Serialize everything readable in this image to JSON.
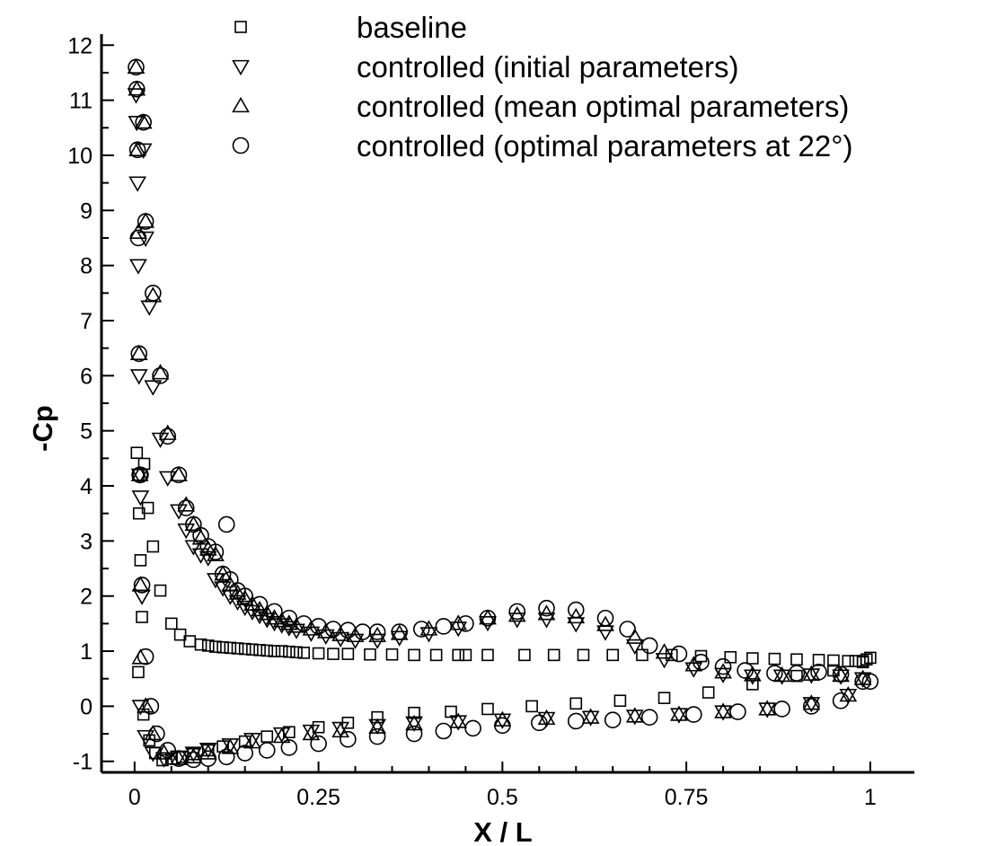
{
  "chart_data": {
    "type": "scatter",
    "title": "",
    "xlabel": "X / L",
    "ylabel": "-Cp",
    "xlim": [
      -0.045,
      1.06
    ],
    "ylim": [
      -1.2,
      12.2
    ],
    "x_ticks": [
      0,
      0.25,
      0.5,
      0.75,
      1
    ],
    "x_tick_labels": [
      "0",
      "0.25",
      "0.5",
      "0.75",
      "1"
    ],
    "y_ticks": [
      -1,
      0,
      1,
      2,
      3,
      4,
      5,
      6,
      7,
      8,
      9,
      10,
      11,
      12
    ],
    "y_tick_labels": [
      "-1",
      "0",
      "1",
      "2",
      "3",
      "4",
      "5",
      "6",
      "7",
      "8",
      "9",
      "10",
      "11",
      "12"
    ],
    "grid": false,
    "legend_position": "top-right",
    "colors": {
      "marker": "#000000",
      "axis": "#000000",
      "background": "#ffffff"
    },
    "series": [
      {
        "name": "baseline",
        "marker": "square",
        "x": [
          0.003,
          0.005,
          0.006,
          0.008,
          0.01,
          0.013,
          0.018,
          0.025,
          0.035,
          0.05,
          0.062,
          0.075,
          0.09,
          0.1,
          0.11,
          0.12,
          0.13,
          0.14,
          0.15,
          0.16,
          0.17,
          0.18,
          0.19,
          0.2,
          0.21,
          0.22,
          0.23,
          0.25,
          0.27,
          0.29,
          0.32,
          0.35,
          0.38,
          0.41,
          0.44,
          0.45,
          0.48,
          0.53,
          0.57,
          0.61,
          0.65,
          0.69,
          0.73,
          0.77,
          0.81,
          0.84,
          0.87,
          0.9,
          0.93,
          0.95,
          0.97,
          0.98,
          0.99,
          0.995,
          1.0,
          0.005,
          0.012,
          0.02,
          0.028,
          0.038,
          0.05,
          0.065,
          0.08,
          0.1,
          0.12,
          0.15,
          0.18,
          0.21,
          0.25,
          0.29,
          0.33,
          0.38,
          0.43,
          0.48,
          0.54,
          0.6,
          0.66,
          0.72,
          0.78,
          0.84,
          0.9,
          0.95,
          0.99
        ],
        "y": [
          4.6,
          4.2,
          3.5,
          2.65,
          1.62,
          4.4,
          3.6,
          2.9,
          2.1,
          1.5,
          1.3,
          1.18,
          1.12,
          1.1,
          1.08,
          1.07,
          1.06,
          1.05,
          1.04,
          1.03,
          1.02,
          1.01,
          1.0,
          1.0,
          0.99,
          0.98,
          0.97,
          0.96,
          0.95,
          0.95,
          0.94,
          0.94,
          0.93,
          0.93,
          0.93,
          0.93,
          0.93,
          0.93,
          0.93,
          0.93,
          0.93,
          0.93,
          0.93,
          0.91,
          0.89,
          0.87,
          0.86,
          0.85,
          0.84,
          0.83,
          0.82,
          0.82,
          0.82,
          0.85,
          0.88,
          0.62,
          -0.15,
          -0.62,
          -0.85,
          -0.98,
          -0.95,
          -0.92,
          -0.87,
          -0.8,
          -0.73,
          -0.64,
          -0.55,
          -0.47,
          -0.38,
          -0.3,
          -0.2,
          -0.12,
          -0.1,
          -0.05,
          0.0,
          0.05,
          0.1,
          0.15,
          0.25,
          0.4,
          0.55,
          0.65,
          0.8
        ]
      },
      {
        "name": "controlled (initial parameters)",
        "marker": "triangle-down",
        "x": [
          0.002,
          0.003,
          0.004,
          0.005,
          0.006,
          0.007,
          0.008,
          0.01,
          0.012,
          0.015,
          0.02,
          0.025,
          0.035,
          0.045,
          0.06,
          0.07,
          0.08,
          0.09,
          0.1,
          0.11,
          0.12,
          0.13,
          0.14,
          0.15,
          0.16,
          0.17,
          0.18,
          0.19,
          0.2,
          0.21,
          0.22,
          0.24,
          0.26,
          0.28,
          0.3,
          0.33,
          0.36,
          0.4,
          0.44,
          0.48,
          0.52,
          0.56,
          0.6,
          0.64,
          0.68,
          0.72,
          0.76,
          0.8,
          0.84,
          0.88,
          0.92,
          0.96,
          0.99,
          0.008,
          0.015,
          0.025,
          0.04,
          0.06,
          0.08,
          0.1,
          0.13,
          0.16,
          0.2,
          0.24,
          0.28,
          0.33,
          0.38,
          0.44,
          0.5,
          0.56,
          0.62,
          0.68,
          0.74,
          0.8,
          0.86,
          0.92,
          0.97
        ],
        "y": [
          11.1,
          10.6,
          9.5,
          8.0,
          6.0,
          4.2,
          3.8,
          2.0,
          10.1,
          8.5,
          7.25,
          5.8,
          4.85,
          4.15,
          3.55,
          3.2,
          2.9,
          2.75,
          2.7,
          2.3,
          2.15,
          2.0,
          1.9,
          1.8,
          1.72,
          1.65,
          1.58,
          1.52,
          1.48,
          1.43,
          1.38,
          1.33,
          1.28,
          1.23,
          1.2,
          1.2,
          1.25,
          1.32,
          1.42,
          1.52,
          1.58,
          1.58,
          1.5,
          1.35,
          1.1,
          0.85,
          0.68,
          0.58,
          0.55,
          0.55,
          0.57,
          0.55,
          0.5,
          0.0,
          -0.55,
          -0.85,
          -0.95,
          -0.92,
          -0.85,
          -0.78,
          -0.7,
          -0.6,
          -0.5,
          -0.45,
          -0.4,
          -0.35,
          -0.3,
          -0.28,
          -0.25,
          -0.22,
          -0.2,
          -0.18,
          -0.15,
          -0.1,
          -0.05,
          0.05,
          0.2
        ]
      },
      {
        "name": "controlled (mean optimal parameters)",
        "marker": "triangle-up",
        "x": [
          0.002,
          0.003,
          0.004,
          0.005,
          0.006,
          0.007,
          0.008,
          0.012,
          0.015,
          0.025,
          0.035,
          0.045,
          0.06,
          0.07,
          0.08,
          0.09,
          0.1,
          0.11,
          0.12,
          0.13,
          0.14,
          0.15,
          0.16,
          0.17,
          0.18,
          0.19,
          0.2,
          0.21,
          0.22,
          0.24,
          0.26,
          0.28,
          0.3,
          0.33,
          0.36,
          0.4,
          0.44,
          0.48,
          0.52,
          0.56,
          0.6,
          0.64,
          0.68,
          0.72,
          0.76,
          0.8,
          0.84,
          0.88,
          0.92,
          0.96,
          0.99,
          0.008,
          0.015,
          0.025,
          0.04,
          0.06,
          0.08,
          0.1,
          0.13,
          0.16,
          0.2,
          0.24,
          0.28,
          0.33,
          0.38,
          0.44,
          0.5,
          0.56,
          0.62,
          0.68,
          0.74,
          0.8,
          0.86,
          0.92,
          0.97
        ],
        "y": [
          11.6,
          11.2,
          10.1,
          8.6,
          6.4,
          4.2,
          2.2,
          10.6,
          8.8,
          7.45,
          6.05,
          4.95,
          4.2,
          3.65,
          3.3,
          3.05,
          2.85,
          2.75,
          2.4,
          2.2,
          2.05,
          1.95,
          1.85,
          1.75,
          1.68,
          1.6,
          1.55,
          1.5,
          1.45,
          1.4,
          1.35,
          1.3,
          1.28,
          1.28,
          1.32,
          1.4,
          1.5,
          1.6,
          1.65,
          1.68,
          1.62,
          1.48,
          1.25,
          0.98,
          0.75,
          0.62,
          0.57,
          0.56,
          0.58,
          0.56,
          0.5,
          0.88,
          0.0,
          -0.5,
          -0.85,
          -0.95,
          -0.92,
          -0.85,
          -0.75,
          -0.65,
          -0.55,
          -0.5,
          -0.45,
          -0.38,
          -0.32,
          -0.28,
          -0.25,
          -0.22,
          -0.2,
          -0.18,
          -0.15,
          -0.1,
          -0.05,
          0.05,
          0.2
        ]
      },
      {
        "name": "controlled (optimal parameters at 22°)",
        "marker": "circle",
        "x": [
          0.002,
          0.003,
          0.004,
          0.005,
          0.006,
          0.007,
          0.008,
          0.01,
          0.012,
          0.015,
          0.025,
          0.035,
          0.045,
          0.06,
          0.07,
          0.08,
          0.09,
          0.1,
          0.11,
          0.12,
          0.125,
          0.13,
          0.14,
          0.15,
          0.17,
          0.19,
          0.21,
          0.23,
          0.25,
          0.27,
          0.29,
          0.31,
          0.33,
          0.36,
          0.39,
          0.42,
          0.45,
          0.48,
          0.52,
          0.56,
          0.6,
          0.64,
          0.67,
          0.7,
          0.74,
          0.77,
          0.8,
          0.83,
          0.87,
          0.9,
          0.93,
          0.96,
          0.99,
          0.015,
          0.022,
          0.03,
          0.045,
          0.06,
          0.08,
          0.1,
          0.125,
          0.15,
          0.18,
          0.21,
          0.25,
          0.29,
          0.33,
          0.38,
          0.42,
          0.46,
          0.5,
          0.55,
          0.6,
          0.65,
          0.7,
          0.76,
          0.82,
          0.88,
          0.92,
          0.96,
          1.0
        ],
        "y": [
          11.6,
          11.2,
          10.1,
          8.5,
          6.4,
          4.2,
          4.2,
          2.2,
          10.6,
          8.8,
          7.5,
          6.0,
          4.9,
          4.2,
          3.6,
          3.3,
          3.1,
          2.9,
          2.8,
          2.4,
          3.3,
          2.3,
          2.1,
          2.0,
          1.85,
          1.72,
          1.6,
          1.5,
          1.45,
          1.4,
          1.38,
          1.35,
          1.35,
          1.35,
          1.4,
          1.45,
          1.5,
          1.6,
          1.72,
          1.78,
          1.75,
          1.6,
          1.4,
          1.1,
          0.95,
          0.8,
          0.72,
          0.65,
          0.6,
          0.6,
          0.62,
          0.58,
          0.45,
          0.9,
          0.0,
          -0.5,
          -0.8,
          -0.95,
          -0.97,
          -0.95,
          -0.92,
          -0.85,
          -0.8,
          -0.75,
          -0.68,
          -0.6,
          -0.55,
          -0.5,
          -0.45,
          -0.4,
          -0.35,
          -0.3,
          -0.27,
          -0.25,
          -0.2,
          -0.15,
          -0.1,
          -0.05,
          0.0,
          0.1,
          0.45
        ]
      }
    ]
  }
}
